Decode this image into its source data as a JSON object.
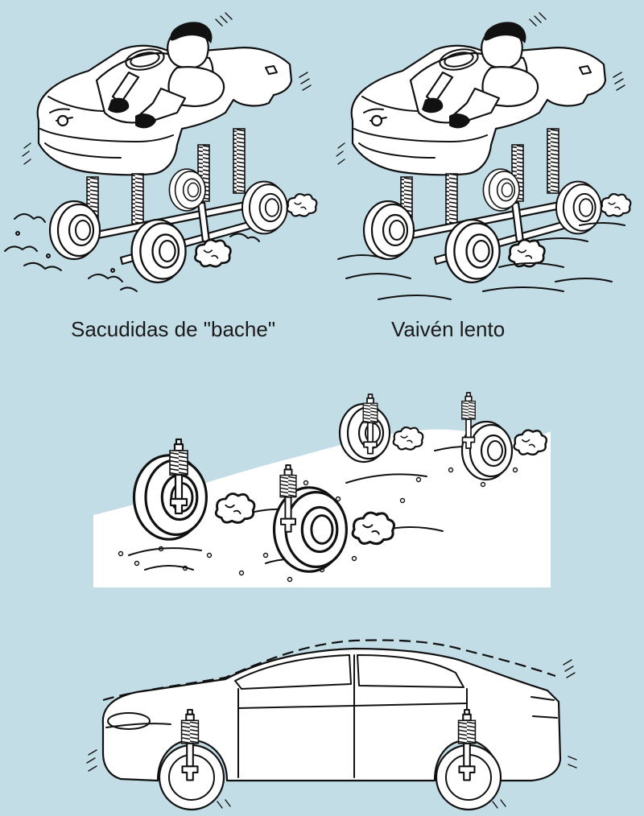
{
  "illustrations": {
    "bump_shake": {
      "caption": "Sacudidas de \"bache\""
    },
    "slow_sway": {
      "caption": "Vaivén lento"
    }
  },
  "colors": {
    "background": "#c3dde6",
    "line": "#111111",
    "fill": "#ffffff"
  },
  "icons": [
    "car-body-icon",
    "driver-icon",
    "coil-spring-icon",
    "wheel-icon",
    "shock-absorber-icon",
    "dust-cloud-icon"
  ]
}
